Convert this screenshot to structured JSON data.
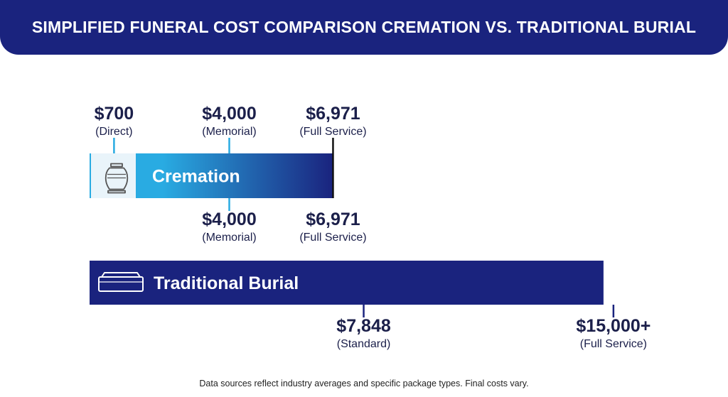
{
  "header": {
    "title": "SIMPLIFIED FUNERAL COST COMPARISON CREMATION VS. TRADITIONAL BURIAL"
  },
  "colors": {
    "header_bg": "#1a237e",
    "cremation_start": "#29abe2",
    "cremation_end": "#1a237e",
    "burial_bar": "#1a237e",
    "text": "#1b1f4a",
    "label_white": "#ffffff"
  },
  "chart_data": {
    "type": "bar",
    "xlim": [
      0,
      16000
    ],
    "series": [
      {
        "name": "Cremation",
        "icon": "urn-icon",
        "max": 6971,
        "markers_above": [
          {
            "value": 700,
            "price": "$700",
            "note": "(Direct)"
          },
          {
            "value": 4000,
            "price": "$4,000",
            "note": "(Memorial)"
          },
          {
            "value": 6971,
            "price": "$6,971",
            "note": "(Full Service)"
          }
        ],
        "markers_below": [
          {
            "value": 4000,
            "price": "$4,000",
            "note": "(Memorial)"
          },
          {
            "value": 6971,
            "price": "$6,971",
            "note": "(Full Service)"
          }
        ]
      },
      {
        "name": "Traditional Burial",
        "icon": "casket-icon",
        "max": 15000,
        "markers_above": [],
        "markers_below": [
          {
            "value": 7848,
            "price": "$7,848",
            "note": "(Standard)"
          },
          {
            "value": 15000,
            "price": "$15,000+",
            "note": "(Full Service)"
          }
        ]
      }
    ]
  },
  "footnote": "Data sources reflect industry averages and specific package types. Final costs vary."
}
